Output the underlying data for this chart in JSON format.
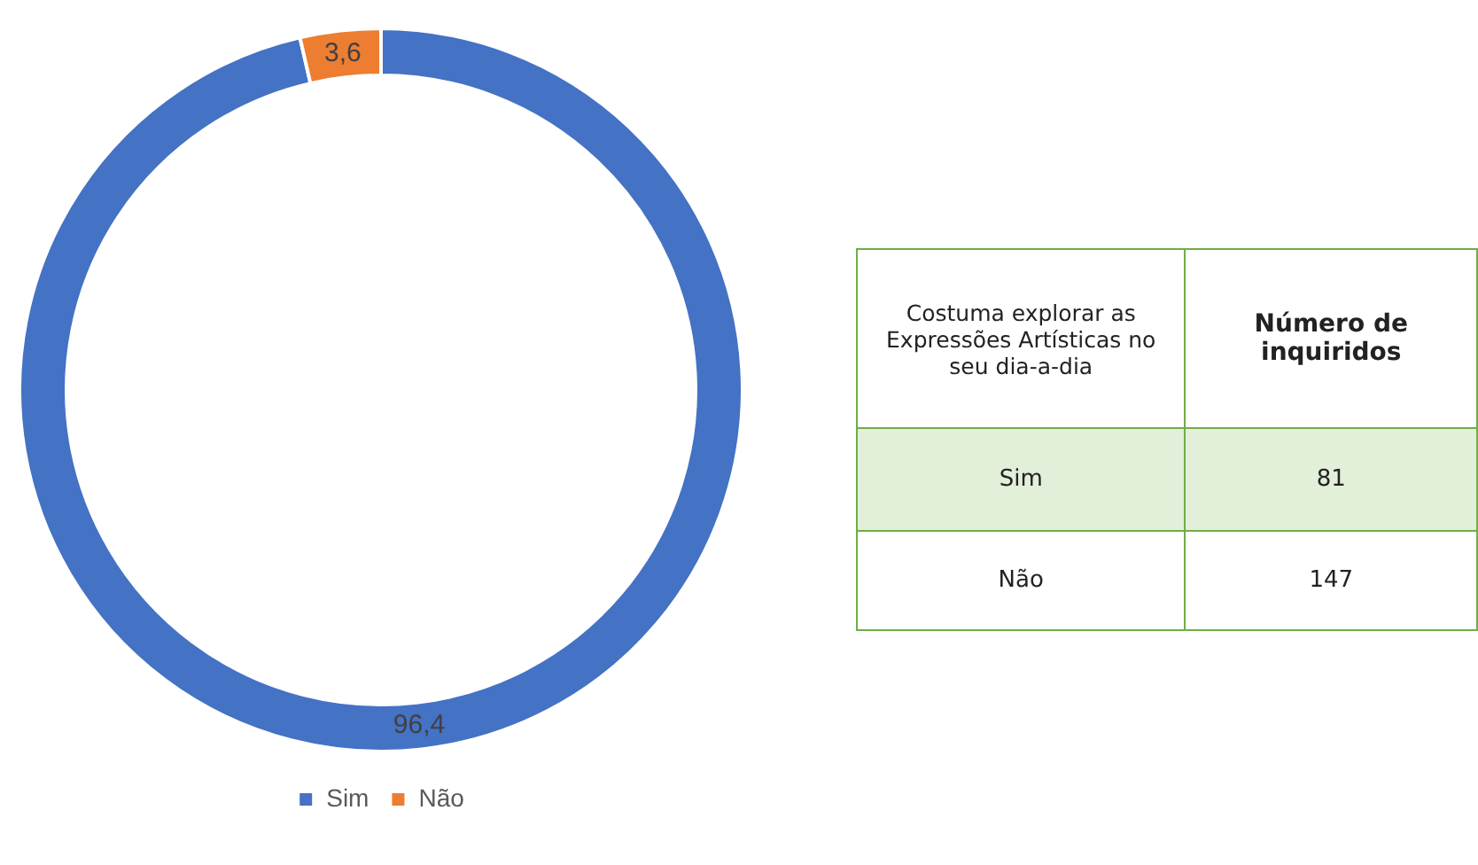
{
  "chart_data": [
    {
      "type": "donut",
      "categories": [
        "Sim",
        "Não"
      ],
      "values": [
        96.4,
        3.6
      ],
      "colors": [
        "#4472c4",
        "#ed7d31"
      ],
      "value_labels": [
        "96,4",
        "3,6"
      ],
      "legend": "bottom"
    },
    {
      "type": "other",
      "title": "Costuma explorar as Expressões Artísticas no seu dia-a-dia",
      "ylabel": "Número de inquiridos",
      "categories": [
        "Sim",
        "Não"
      ],
      "values": [
        81,
        147
      ],
      "data_labels": true
    }
  ]
}
